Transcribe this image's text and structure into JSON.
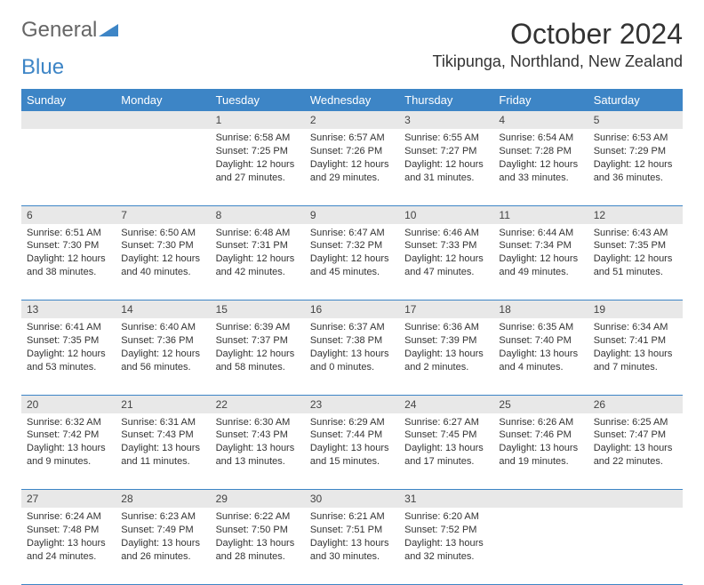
{
  "brand": {
    "part1": "General",
    "part2": "Blue"
  },
  "title": "October 2024",
  "location": "Tikipunga, Northland, New Zealand",
  "colors": {
    "header_bg": "#3d85c6",
    "header_text": "#ffffff",
    "daynum_bg": "#e8e8e8",
    "border": "#3d85c6",
    "text": "#333333"
  },
  "weekdays": [
    "Sunday",
    "Monday",
    "Tuesday",
    "Wednesday",
    "Thursday",
    "Friday",
    "Saturday"
  ],
  "weeks": [
    [
      null,
      null,
      {
        "n": "1",
        "sr": "6:58 AM",
        "ss": "7:25 PM",
        "dl": "12 hours and 27 minutes."
      },
      {
        "n": "2",
        "sr": "6:57 AM",
        "ss": "7:26 PM",
        "dl": "12 hours and 29 minutes."
      },
      {
        "n": "3",
        "sr": "6:55 AM",
        "ss": "7:27 PM",
        "dl": "12 hours and 31 minutes."
      },
      {
        "n": "4",
        "sr": "6:54 AM",
        "ss": "7:28 PM",
        "dl": "12 hours and 33 minutes."
      },
      {
        "n": "5",
        "sr": "6:53 AM",
        "ss": "7:29 PM",
        "dl": "12 hours and 36 minutes."
      }
    ],
    [
      {
        "n": "6",
        "sr": "6:51 AM",
        "ss": "7:30 PM",
        "dl": "12 hours and 38 minutes."
      },
      {
        "n": "7",
        "sr": "6:50 AM",
        "ss": "7:30 PM",
        "dl": "12 hours and 40 minutes."
      },
      {
        "n": "8",
        "sr": "6:48 AM",
        "ss": "7:31 PM",
        "dl": "12 hours and 42 minutes."
      },
      {
        "n": "9",
        "sr": "6:47 AM",
        "ss": "7:32 PM",
        "dl": "12 hours and 45 minutes."
      },
      {
        "n": "10",
        "sr": "6:46 AM",
        "ss": "7:33 PM",
        "dl": "12 hours and 47 minutes."
      },
      {
        "n": "11",
        "sr": "6:44 AM",
        "ss": "7:34 PM",
        "dl": "12 hours and 49 minutes."
      },
      {
        "n": "12",
        "sr": "6:43 AM",
        "ss": "7:35 PM",
        "dl": "12 hours and 51 minutes."
      }
    ],
    [
      {
        "n": "13",
        "sr": "6:41 AM",
        "ss": "7:35 PM",
        "dl": "12 hours and 53 minutes."
      },
      {
        "n": "14",
        "sr": "6:40 AM",
        "ss": "7:36 PM",
        "dl": "12 hours and 56 minutes."
      },
      {
        "n": "15",
        "sr": "6:39 AM",
        "ss": "7:37 PM",
        "dl": "12 hours and 58 minutes."
      },
      {
        "n": "16",
        "sr": "6:37 AM",
        "ss": "7:38 PM",
        "dl": "13 hours and 0 minutes."
      },
      {
        "n": "17",
        "sr": "6:36 AM",
        "ss": "7:39 PM",
        "dl": "13 hours and 2 minutes."
      },
      {
        "n": "18",
        "sr": "6:35 AM",
        "ss": "7:40 PM",
        "dl": "13 hours and 4 minutes."
      },
      {
        "n": "19",
        "sr": "6:34 AM",
        "ss": "7:41 PM",
        "dl": "13 hours and 7 minutes."
      }
    ],
    [
      {
        "n": "20",
        "sr": "6:32 AM",
        "ss": "7:42 PM",
        "dl": "13 hours and 9 minutes."
      },
      {
        "n": "21",
        "sr": "6:31 AM",
        "ss": "7:43 PM",
        "dl": "13 hours and 11 minutes."
      },
      {
        "n": "22",
        "sr": "6:30 AM",
        "ss": "7:43 PM",
        "dl": "13 hours and 13 minutes."
      },
      {
        "n": "23",
        "sr": "6:29 AM",
        "ss": "7:44 PM",
        "dl": "13 hours and 15 minutes."
      },
      {
        "n": "24",
        "sr": "6:27 AM",
        "ss": "7:45 PM",
        "dl": "13 hours and 17 minutes."
      },
      {
        "n": "25",
        "sr": "6:26 AM",
        "ss": "7:46 PM",
        "dl": "13 hours and 19 minutes."
      },
      {
        "n": "26",
        "sr": "6:25 AM",
        "ss": "7:47 PM",
        "dl": "13 hours and 22 minutes."
      }
    ],
    [
      {
        "n": "27",
        "sr": "6:24 AM",
        "ss": "7:48 PM",
        "dl": "13 hours and 24 minutes."
      },
      {
        "n": "28",
        "sr": "6:23 AM",
        "ss": "7:49 PM",
        "dl": "13 hours and 26 minutes."
      },
      {
        "n": "29",
        "sr": "6:22 AM",
        "ss": "7:50 PM",
        "dl": "13 hours and 28 minutes."
      },
      {
        "n": "30",
        "sr": "6:21 AM",
        "ss": "7:51 PM",
        "dl": "13 hours and 30 minutes."
      },
      {
        "n": "31",
        "sr": "6:20 AM",
        "ss": "7:52 PM",
        "dl": "13 hours and 32 minutes."
      },
      null,
      null
    ]
  ],
  "labels": {
    "sunrise": "Sunrise:",
    "sunset": "Sunset:",
    "daylight": "Daylight:"
  }
}
